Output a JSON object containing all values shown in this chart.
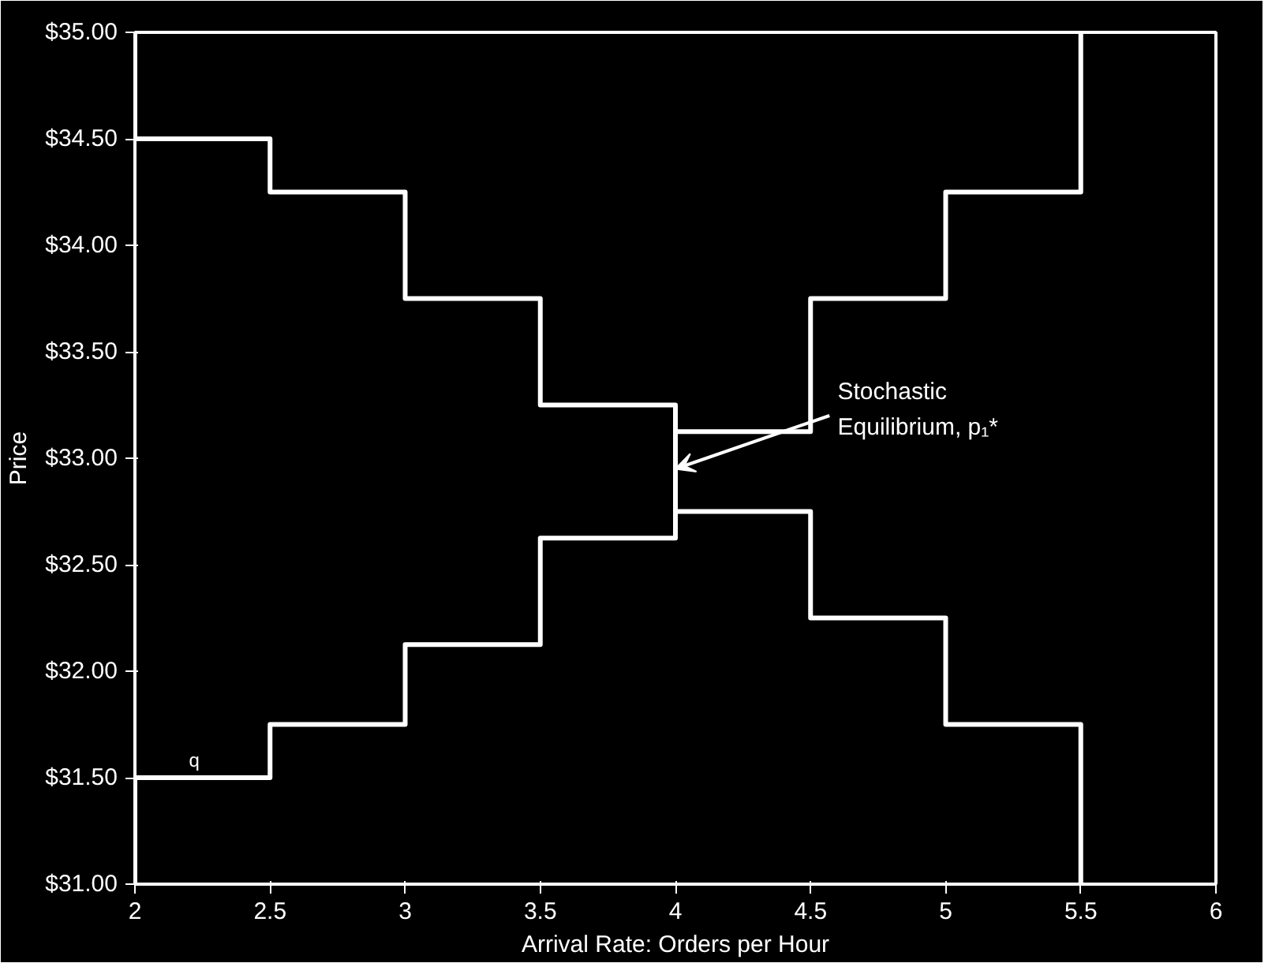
{
  "chart_data": {
    "type": "step",
    "xlabel": "Arrival Rate: Orders per Hour",
    "ylabel": "Price",
    "series": [
      {
        "color": "#ffffff",
        "x": [
          2,
          2,
          2.5,
          3,
          3.5,
          4,
          4.5,
          5,
          5.5
        ],
        "values": [
          35,
          34.5,
          34.25,
          33.75,
          33.25,
          32.75,
          32.25,
          31.75,
          31
        ]
      },
      {
        "color": "#ffffff",
        "x": [
          2,
          2,
          2.5,
          3,
          3.5,
          4,
          4.5,
          5,
          5.5
        ],
        "values": [
          31,
          31.5,
          31.75,
          32.125,
          32.625,
          33.125,
          33.75,
          34.25,
          35
        ]
      }
    ],
    "annotations": [
      {
        "text": "Stochastic Equilibrium, p₁*",
        "x": 4,
        "y": 32.95
      },
      {
        "text": "q",
        "x": 2.2,
        "y": 31.5
      }
    ],
    "xlim": [
      2,
      6
    ],
    "ylim": [
      31,
      35
    ],
    "xticks": [
      2,
      2.5,
      3,
      3.5,
      4,
      4.5,
      5,
      5.5,
      6
    ],
    "yticks": [
      {
        "value": 31,
        "label": "$31.00"
      },
      {
        "value": 31.5,
        "label": "$31.50"
      },
      {
        "value": 32,
        "label": "$32.00"
      },
      {
        "value": 32.5,
        "label": "$32.50"
      },
      {
        "value": 33,
        "label": "$33.00"
      },
      {
        "value": 33.5,
        "label": "$33.50"
      },
      {
        "value": 34,
        "label": "$34.00"
      },
      {
        "value": 34.5,
        "label": "$34.50"
      },
      {
        "value": 35,
        "label": "$35.00"
      }
    ],
    "grid": false
  }
}
